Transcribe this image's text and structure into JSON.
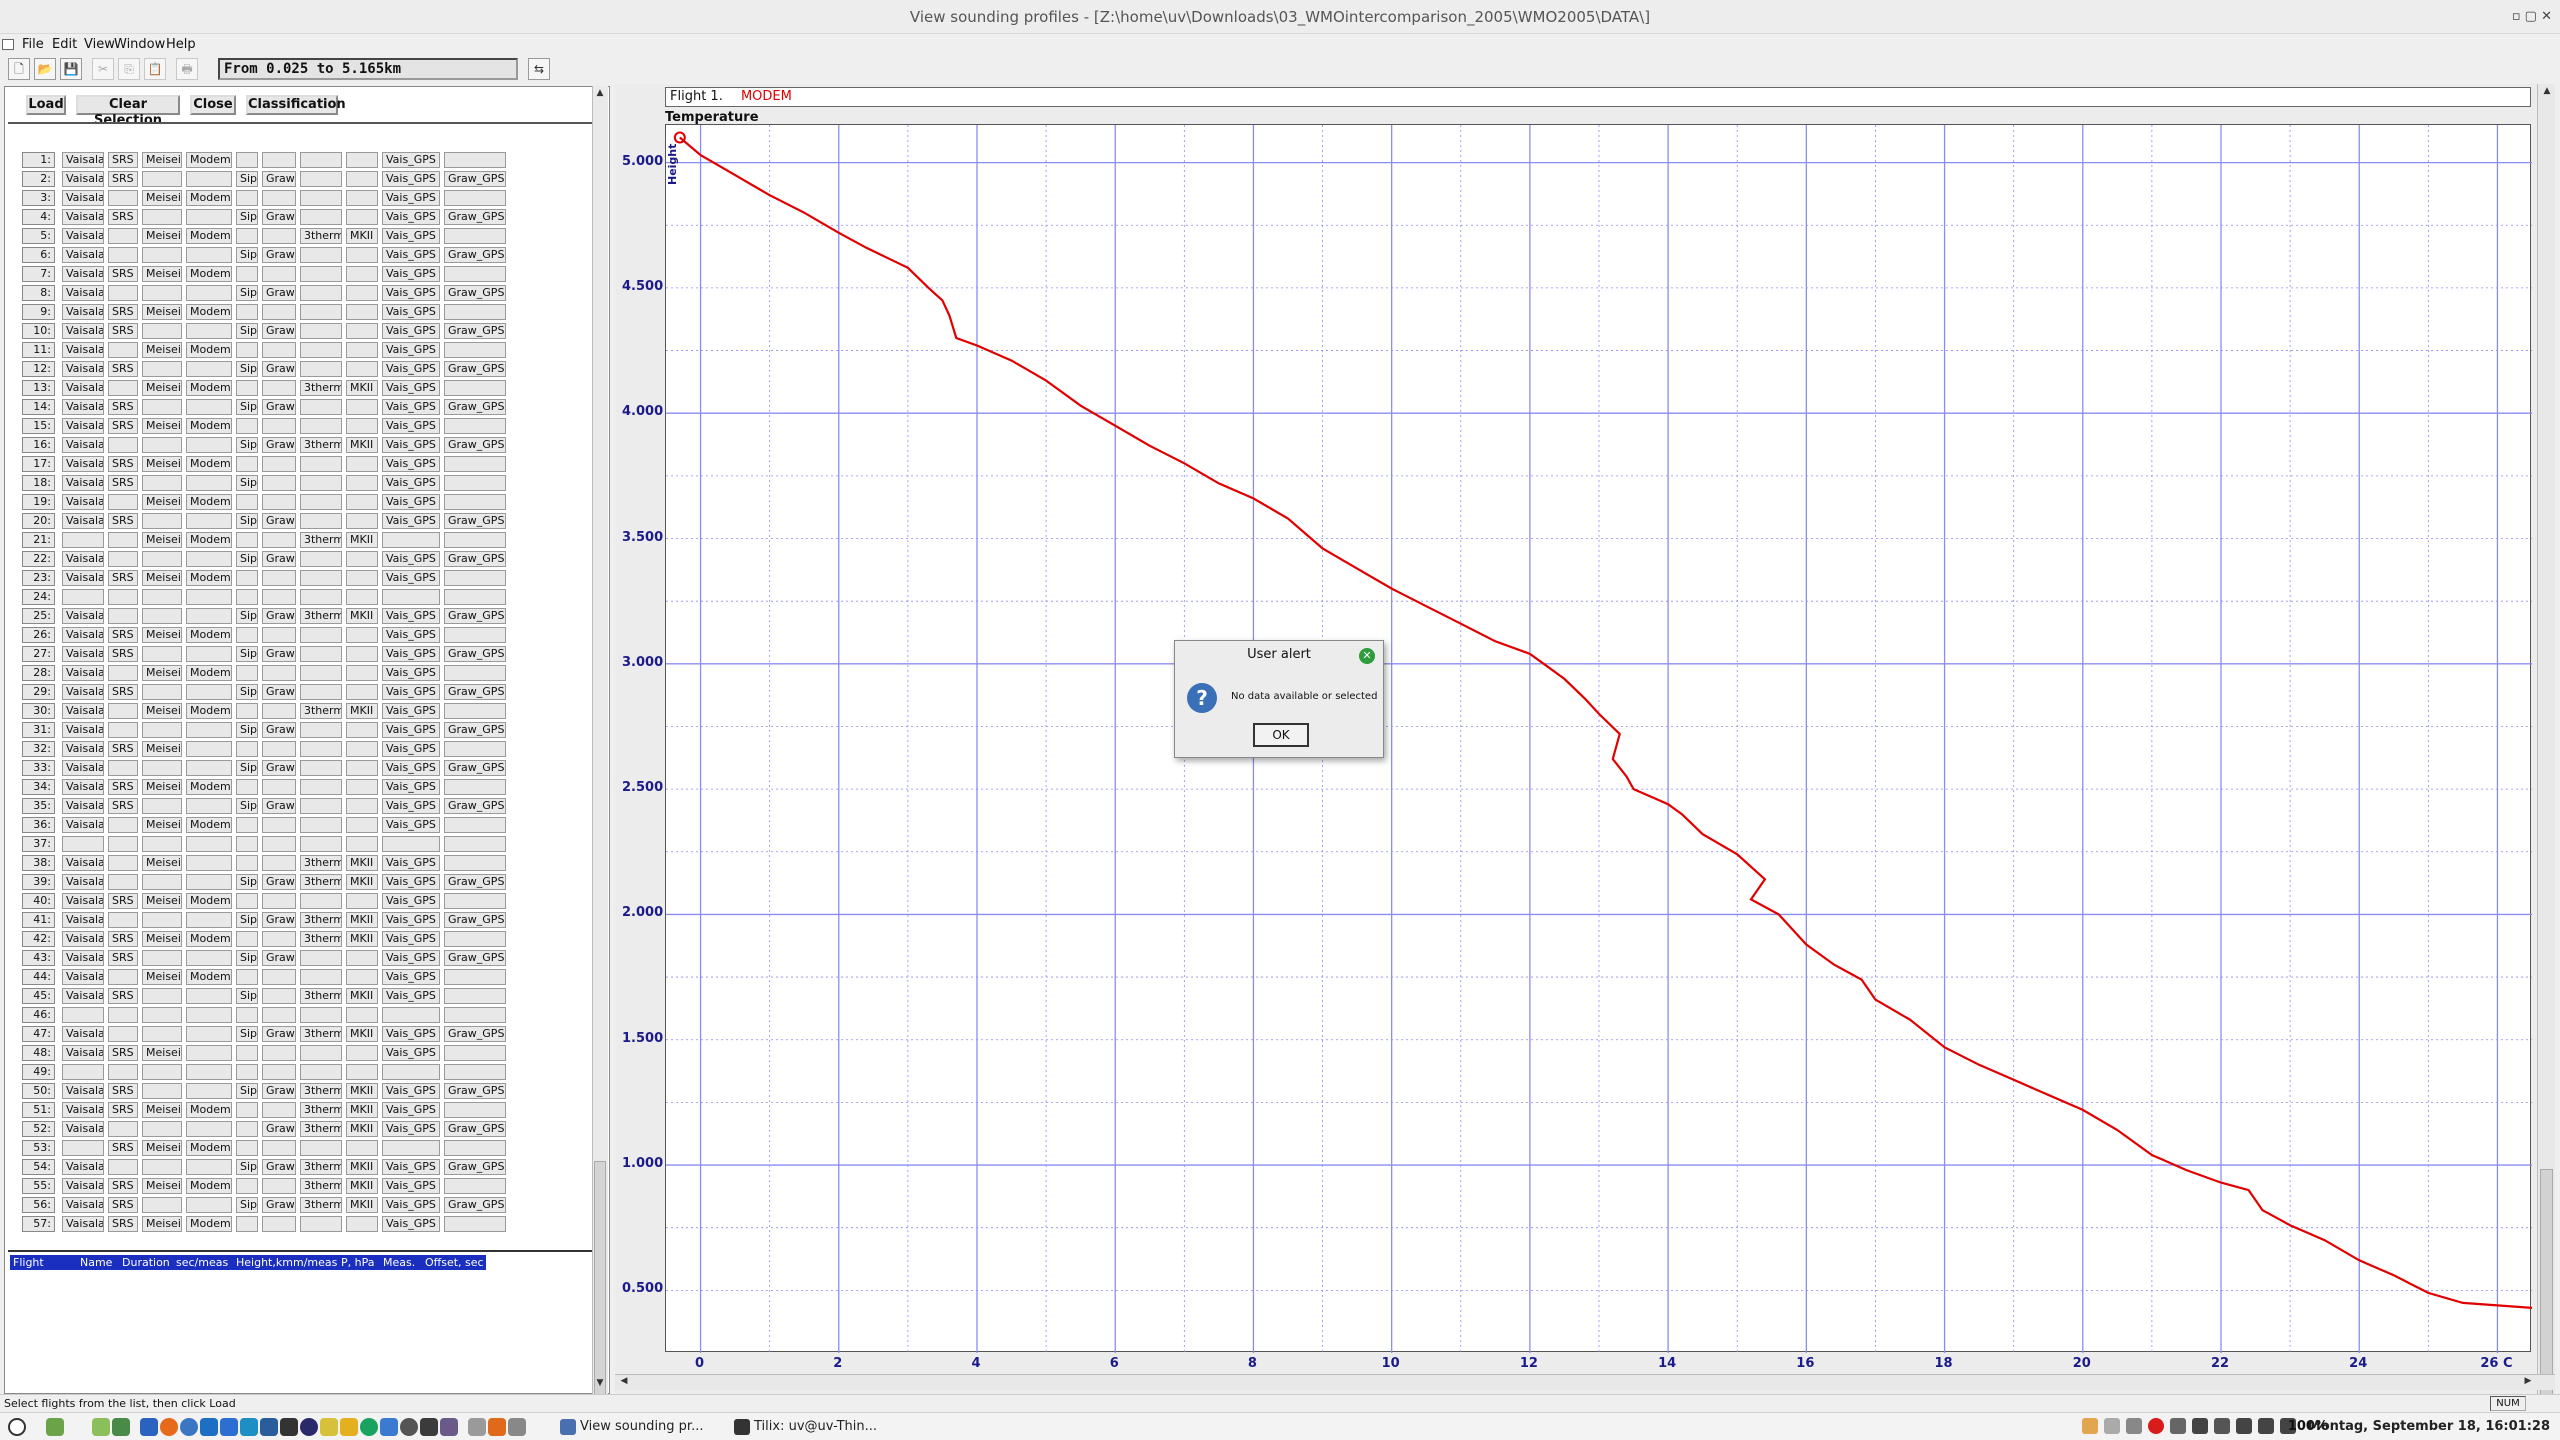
{
  "window": {
    "title": "View sounding profiles - [Z:\\home\\uv\\Downloads\\03_WMOintercomparison_2005\\WMO2005\\DATA\\]"
  },
  "menu": [
    "File",
    "Edit",
    "View",
    "Window",
    "Help"
  ],
  "toolbar": {
    "range_label": "From  0.025  to   5.165km"
  },
  "actions": {
    "load": "Load",
    "clear": "Clear Selection",
    "close": "Close",
    "classification": "Classification"
  },
  "flights": [
    {
      "n": "1:",
      "c": [
        "Vaisala",
        "SRS",
        "Meisei",
        "Modem",
        "",
        "",
        "",
        "",
        "Vais_GPS",
        ""
      ]
    },
    {
      "n": "2:",
      "c": [
        "Vaisala",
        "SRS",
        "",
        "",
        "Sip",
        "Graw",
        "",
        "",
        "Vais_GPS",
        "Graw_GPS"
      ]
    },
    {
      "n": "3:",
      "c": [
        "Vaisala",
        "",
        "Meisei",
        "Modem",
        "",
        "",
        "",
        "",
        "Vais_GPS",
        ""
      ]
    },
    {
      "n": "4:",
      "c": [
        "Vaisala",
        "SRS",
        "",
        "",
        "Sip",
        "Graw",
        "",
        "",
        "Vais_GPS",
        "Graw_GPS"
      ]
    },
    {
      "n": "5:",
      "c": [
        "Vaisala",
        "",
        "Meisei",
        "Modem",
        "",
        "",
        "3therm",
        "MKII",
        "Vais_GPS",
        ""
      ]
    },
    {
      "n": "6:",
      "c": [
        "Vaisala",
        "",
        "",
        "",
        "Sip",
        "Graw",
        "",
        "",
        "Vais_GPS",
        "Graw_GPS"
      ]
    },
    {
      "n": "7:",
      "c": [
        "Vaisala",
        "SRS",
        "Meisei",
        "Modem",
        "",
        "",
        "",
        "",
        "Vais_GPS",
        ""
      ]
    },
    {
      "n": "8:",
      "c": [
        "Vaisala",
        "",
        "",
        "",
        "Sip",
        "Graw",
        "",
        "",
        "Vais_GPS",
        "Graw_GPS"
      ]
    },
    {
      "n": "9:",
      "c": [
        "Vaisala",
        "SRS",
        "Meisei",
        "Modem",
        "",
        "",
        "",
        "",
        "Vais_GPS",
        ""
      ]
    },
    {
      "n": "10:",
      "c": [
        "Vaisala",
        "SRS",
        "",
        "",
        "Sip",
        "Graw",
        "",
        "",
        "Vais_GPS",
        "Graw_GPS"
      ]
    },
    {
      "n": "11:",
      "c": [
        "Vaisala",
        "",
        "Meisei",
        "Modem",
        "",
        "",
        "",
        "",
        "Vais_GPS",
        ""
      ]
    },
    {
      "n": "12:",
      "c": [
        "Vaisala",
        "SRS",
        "",
        "",
        "Sip",
        "Graw",
        "",
        "",
        "Vais_GPS",
        "Graw_GPS"
      ]
    },
    {
      "n": "13:",
      "c": [
        "Vaisala",
        "",
        "Meisei",
        "Modem",
        "",
        "",
        "3therm",
        "MKII",
        "Vais_GPS",
        ""
      ]
    },
    {
      "n": "14:",
      "c": [
        "Vaisala",
        "SRS",
        "",
        "",
        "Sip",
        "Graw",
        "",
        "",
        "Vais_GPS",
        "Graw_GPS"
      ]
    },
    {
      "n": "15:",
      "c": [
        "Vaisala",
        "SRS",
        "Meisei",
        "Modem",
        "",
        "",
        "",
        "",
        "Vais_GPS",
        ""
      ]
    },
    {
      "n": "16:",
      "c": [
        "Vaisala",
        "",
        "",
        "",
        "Sip",
        "Graw",
        "3therm",
        "MKII",
        "Vais_GPS",
        "Graw_GPS"
      ]
    },
    {
      "n": "17:",
      "c": [
        "Vaisala",
        "SRS",
        "Meisei",
        "Modem",
        "",
        "",
        "",
        "",
        "Vais_GPS",
        ""
      ]
    },
    {
      "n": "18:",
      "c": [
        "Vaisala",
        "SRS",
        "",
        "",
        "Sip",
        "",
        "",
        "",
        "Vais_GPS",
        ""
      ]
    },
    {
      "n": "19:",
      "c": [
        "Vaisala",
        "",
        "Meisei",
        "Modem",
        "",
        "",
        "",
        "",
        "Vais_GPS",
        ""
      ]
    },
    {
      "n": "20:",
      "c": [
        "Vaisala",
        "SRS",
        "",
        "",
        "Sip",
        "Graw",
        "",
        "",
        "Vais_GPS",
        "Graw_GPS"
      ]
    },
    {
      "n": "21:",
      "c": [
        "",
        "",
        "Meisei",
        "Modem",
        "",
        "",
        "3therm",
        "MKII",
        "",
        ""
      ]
    },
    {
      "n": "22:",
      "c": [
        "Vaisala",
        "",
        "",
        "",
        "Sip",
        "Graw",
        "",
        "",
        "Vais_GPS",
        "Graw_GPS"
      ]
    },
    {
      "n": "23:",
      "c": [
        "Vaisala",
        "SRS",
        "Meisei",
        "Modem",
        "",
        "",
        "",
        "",
        "Vais_GPS",
        ""
      ]
    },
    {
      "n": "24:",
      "c": [
        "",
        "",
        "",
        "",
        "",
        "",
        "",
        "",
        "",
        ""
      ]
    },
    {
      "n": "25:",
      "c": [
        "Vaisala",
        "",
        "",
        "",
        "Sip",
        "Graw",
        "3therm",
        "MKII",
        "Vais_GPS",
        "Graw_GPS"
      ]
    },
    {
      "n": "26:",
      "c": [
        "Vaisala",
        "SRS",
        "Meisei",
        "Modem",
        "",
        "",
        "",
        "",
        "Vais_GPS",
        ""
      ]
    },
    {
      "n": "27:",
      "c": [
        "Vaisala",
        "SRS",
        "",
        "",
        "Sip",
        "Graw",
        "",
        "",
        "Vais_GPS",
        "Graw_GPS"
      ]
    },
    {
      "n": "28:",
      "c": [
        "Vaisala",
        "",
        "Meisei",
        "Modem",
        "",
        "",
        "",
        "",
        "Vais_GPS",
        ""
      ]
    },
    {
      "n": "29:",
      "c": [
        "Vaisala",
        "SRS",
        "",
        "",
        "Sip",
        "Graw",
        "",
        "",
        "Vais_GPS",
        "Graw_GPS"
      ]
    },
    {
      "n": "30:",
      "c": [
        "Vaisala",
        "",
        "Meisei",
        "Modem",
        "",
        "",
        "3therm",
        "MKII",
        "Vais_GPS",
        ""
      ]
    },
    {
      "n": "31:",
      "c": [
        "Vaisala",
        "",
        "",
        "",
        "Sip",
        "Graw",
        "",
        "",
        "Vais_GPS",
        "Graw_GPS"
      ]
    },
    {
      "n": "32:",
      "c": [
        "Vaisala",
        "SRS",
        "Meisei",
        "",
        "",
        "",
        "",
        "",
        "Vais_GPS",
        ""
      ]
    },
    {
      "n": "33:",
      "c": [
        "Vaisala",
        "",
        "",
        "",
        "Sip",
        "Graw",
        "",
        "",
        "Vais_GPS",
        "Graw_GPS"
      ]
    },
    {
      "n": "34:",
      "c": [
        "Vaisala",
        "SRS",
        "Meisei",
        "Modem",
        "",
        "",
        "",
        "",
        "Vais_GPS",
        ""
      ]
    },
    {
      "n": "35:",
      "c": [
        "Vaisala",
        "SRS",
        "",
        "",
        "Sip",
        "Graw",
        "",
        "",
        "Vais_GPS",
        "Graw_GPS"
      ]
    },
    {
      "n": "36:",
      "c": [
        "Vaisala",
        "",
        "Meisei",
        "Modem",
        "",
        "",
        "",
        "",
        "Vais_GPS",
        ""
      ]
    },
    {
      "n": "37:",
      "c": [
        "",
        "",
        "",
        "",
        "",
        "",
        "",
        "",
        "",
        ""
      ]
    },
    {
      "n": "38:",
      "c": [
        "Vaisala",
        "",
        "Meisei",
        "",
        "",
        "",
        "3therm",
        "MKII",
        "Vais_GPS",
        ""
      ]
    },
    {
      "n": "39:",
      "c": [
        "Vaisala",
        "",
        "",
        "",
        "Sip",
        "Graw",
        "3therm",
        "MKII",
        "Vais_GPS",
        "Graw_GPS"
      ]
    },
    {
      "n": "40:",
      "c": [
        "Vaisala",
        "SRS",
        "Meisei",
        "Modem",
        "",
        "",
        "",
        "",
        "Vais_GPS",
        ""
      ]
    },
    {
      "n": "41:",
      "c": [
        "Vaisala",
        "",
        "",
        "",
        "Sip",
        "Graw",
        "3therm",
        "MKII",
        "Vais_GPS",
        "Graw_GPS"
      ]
    },
    {
      "n": "42:",
      "c": [
        "Vaisala",
        "SRS",
        "Meisei",
        "Modem",
        "",
        "",
        "3therm",
        "MKII",
        "Vais_GPS",
        ""
      ]
    },
    {
      "n": "43:",
      "c": [
        "Vaisala",
        "SRS",
        "",
        "",
        "Sip",
        "Graw",
        "",
        "",
        "Vais_GPS",
        "Graw_GPS"
      ]
    },
    {
      "n": "44:",
      "c": [
        "Vaisala",
        "",
        "Meisei",
        "Modem",
        "",
        "",
        "",
        "",
        "Vais_GPS",
        ""
      ]
    },
    {
      "n": "45:",
      "c": [
        "Vaisala",
        "SRS",
        "",
        "",
        "Sip",
        "",
        "3therm",
        "MKII",
        "Vais_GPS",
        ""
      ]
    },
    {
      "n": "46:",
      "c": [
        "",
        "",
        "",
        "",
        "",
        "",
        "",
        "",
        "",
        ""
      ]
    },
    {
      "n": "47:",
      "c": [
        "Vaisala",
        "",
        "",
        "",
        "Sip",
        "Graw",
        "3therm",
        "MKII",
        "Vais_GPS",
        "Graw_GPS"
      ]
    },
    {
      "n": "48:",
      "c": [
        "Vaisala",
        "SRS",
        "Meisei",
        "",
        "",
        "",
        "",
        "",
        "Vais_GPS",
        ""
      ]
    },
    {
      "n": "49:",
      "c": [
        "",
        "",
        "",
        "",
        "",
        "",
        "",
        "",
        "",
        ""
      ]
    },
    {
      "n": "50:",
      "c": [
        "Vaisala",
        "SRS",
        "",
        "",
        "Sip",
        "Graw",
        "3therm",
        "MKII",
        "Vais_GPS",
        "Graw_GPS"
      ]
    },
    {
      "n": "51:",
      "c": [
        "Vaisala",
        "SRS",
        "Meisei",
        "Modem",
        "",
        "",
        "3therm",
        "MKII",
        "Vais_GPS",
        ""
      ]
    },
    {
      "n": "52:",
      "c": [
        "Vaisala",
        "",
        "",
        "",
        "",
        "Graw",
        "3therm",
        "MKII",
        "Vais_GPS",
        "Graw_GPS"
      ]
    },
    {
      "n": "53:",
      "c": [
        "",
        "SRS",
        "Meisei",
        "Modem",
        "",
        "",
        "",
        "",
        "",
        ""
      ]
    },
    {
      "n": "54:",
      "c": [
        "Vaisala",
        "",
        "",
        "",
        "Sip",
        "Graw",
        "3therm",
        "MKII",
        "Vais_GPS",
        "Graw_GPS"
      ]
    },
    {
      "n": "55:",
      "c": [
        "Vaisala",
        "SRS",
        "Meisei",
        "Modem",
        "",
        "",
        "3therm",
        "MKII",
        "Vais_GPS",
        ""
      ]
    },
    {
      "n": "56:",
      "c": [
        "Vaisala",
        "SRS",
        "",
        "",
        "Sip",
        "Graw",
        "3therm",
        "MKII",
        "Vais_GPS",
        "Graw_GPS"
      ]
    },
    {
      "n": "57:",
      "c": [
        "Vaisala",
        "SRS",
        "Meisei",
        "Modem",
        "",
        "",
        "",
        "",
        "Vais_GPS",
        ""
      ]
    }
  ],
  "info_table": {
    "headers": [
      "Flight",
      "Name",
      "Duration",
      "sec/meas",
      "Height,km",
      "m/meas",
      "P, hPa",
      "Meas.",
      "Offset, sec"
    ]
  },
  "plot": {
    "flight_label": "Flight 1.",
    "sonde_label": "MODEM",
    "sonde_color": "#e00000",
    "title": "Temperature",
    "y_axis_label": "Height",
    "y_ticks": [
      "5.000",
      "4.500",
      "4.000",
      "3.500",
      "3.000",
      "2.500",
      "2.000",
      "1.500",
      "1.000",
      "0.500"
    ],
    "x_ticks": [
      "0",
      "2",
      "4",
      "6",
      "8",
      "10",
      "12",
      "14",
      "16",
      "18",
      "20",
      "22",
      "24",
      "26 C"
    ]
  },
  "chart_data": {
    "type": "line",
    "title": "Temperature",
    "xlabel": "",
    "ylabel": "Height",
    "xlim": [
      -0.5,
      26.5
    ],
    "ylim": [
      0.25,
      5.15
    ],
    "grid": true,
    "series": [
      {
        "name": "MODEM",
        "color": "#e00000",
        "x": [
          -0.3,
          0,
          0.5,
          1,
          1.5,
          2,
          2.4,
          3,
          3.3,
          3.5,
          3.6,
          3.7,
          4,
          4.5,
          5,
          5.5,
          6,
          6.5,
          7,
          7.5,
          8,
          8.5,
          9,
          9.5,
          10,
          10.5,
          11,
          11.5,
          12,
          12.2,
          12.5,
          12.8,
          13,
          13.3,
          13.2,
          13.4,
          13.5,
          14,
          14.2,
          14.5,
          15,
          15.4,
          15.2,
          15.6,
          16,
          16.4,
          16.8,
          17,
          17.5,
          18,
          18.5,
          19,
          19.5,
          20,
          20.5,
          21,
          21.5,
          22,
          22.4,
          22.6,
          23,
          23.5,
          24,
          24.5,
          25,
          25.5,
          26,
          26.5
        ],
        "y": [
          5.1,
          5.03,
          4.95,
          4.87,
          4.8,
          4.72,
          4.66,
          4.58,
          4.5,
          4.45,
          4.39,
          4.3,
          4.27,
          4.21,
          4.13,
          4.03,
          3.95,
          3.87,
          3.8,
          3.72,
          3.66,
          3.58,
          3.46,
          3.38,
          3.3,
          3.23,
          3.16,
          3.09,
          3.04,
          3.0,
          2.94,
          2.86,
          2.8,
          2.72,
          2.62,
          2.55,
          2.5,
          2.44,
          2.4,
          2.32,
          2.24,
          2.14,
          2.06,
          2.0,
          1.88,
          1.8,
          1.74,
          1.66,
          1.58,
          1.47,
          1.4,
          1.34,
          1.28,
          1.22,
          1.14,
          1.04,
          0.98,
          0.93,
          0.9,
          0.82,
          0.76,
          0.7,
          0.62,
          0.56,
          0.49,
          0.45,
          0.44,
          0.43
        ]
      }
    ]
  },
  "dialog": {
    "title": "User alert",
    "message": "No data available or selected",
    "ok": "OK"
  },
  "status": {
    "text": "Select flights from the list, then click Load",
    "num": "NUM"
  },
  "taskbar": {
    "task1": "View sounding pr...",
    "task2": "Tilix: uv@uv-Thin...",
    "battery": "100%",
    "clock": "Montag, September 18, 16:01:28"
  }
}
